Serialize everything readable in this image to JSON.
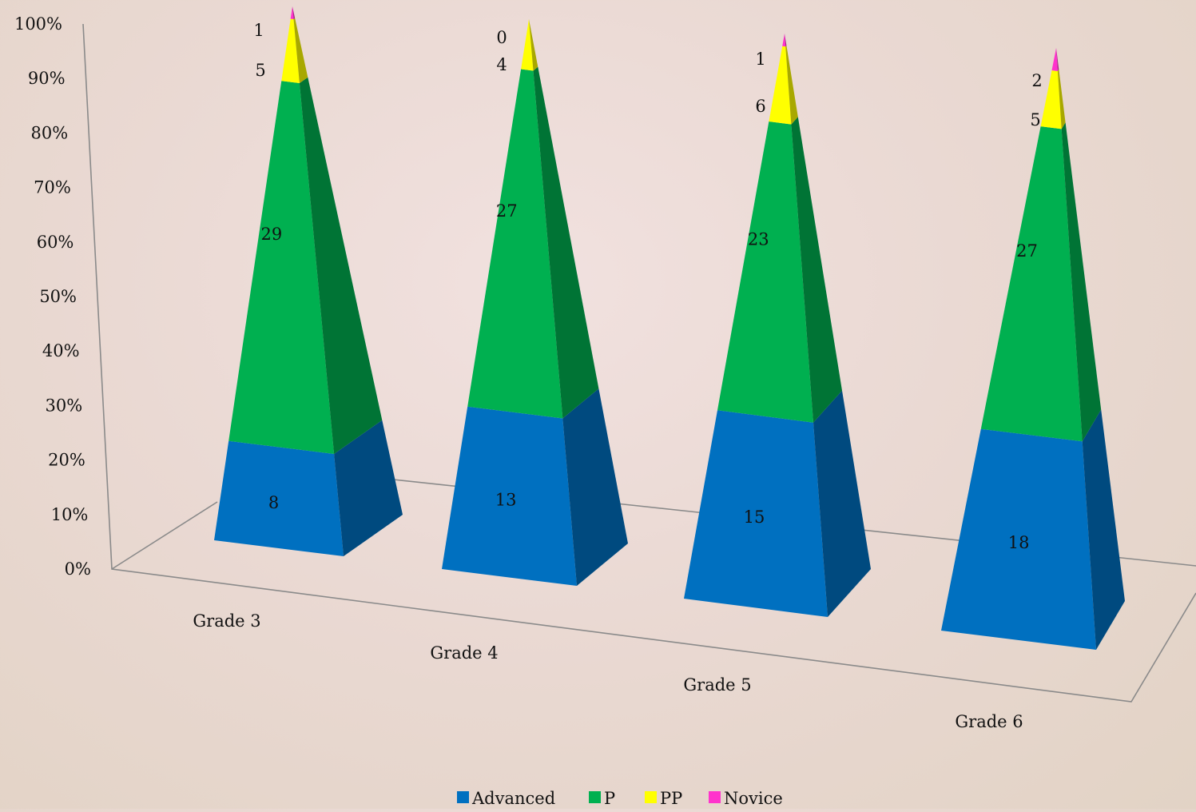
{
  "chart_data": {
    "type": "pyramid-3d-stacked-percent",
    "categories": [
      "Grade 3",
      "Grade 4",
      "Grade 5",
      "Grade 6"
    ],
    "series": [
      {
        "name": "Advanced",
        "color": "#0070c0",
        "values": [
          8,
          13,
          15,
          18
        ]
      },
      {
        "name": "P",
        "color": "#00b050",
        "values": [
          29,
          27,
          23,
          27
        ]
      },
      {
        "name": "PP",
        "color": "#ffff00",
        "values": [
          5,
          4,
          6,
          5
        ]
      },
      {
        "name": "Novice",
        "color": "#ff33cc",
        "values": [
          1,
          0,
          1,
          2
        ]
      }
    ],
    "y_ticks": [
      "0%",
      "10%",
      "20%",
      "30%",
      "40%",
      "50%",
      "60%",
      "70%",
      "80%",
      "90%",
      "100%"
    ],
    "ylim": [
      0,
      100
    ],
    "legend_position": "bottom",
    "grid": false
  }
}
